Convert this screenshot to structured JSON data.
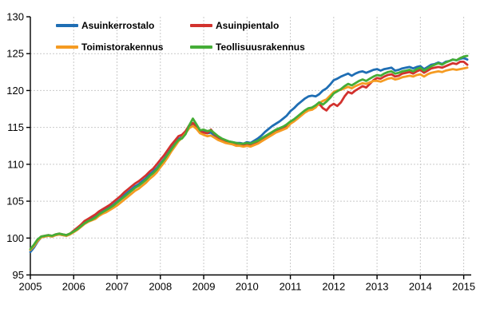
{
  "chart_data": {
    "type": "line",
    "title": "",
    "xlabel": "",
    "ylabel": "",
    "x_start_label": "2005-01",
    "x_end_label": "2015-02",
    "points_per_series": 122,
    "x_ticks": [
      "2005",
      "2006",
      "2007",
      "2008",
      "2009",
      "2010",
      "2011",
      "2012",
      "2013",
      "2014",
      "2015"
    ],
    "y_ticks": [
      "95",
      "100",
      "105",
      "110",
      "115",
      "120",
      "125",
      "130"
    ],
    "ylim": [
      95,
      130
    ],
    "grid": true,
    "gridline_color": "#c9c9c9",
    "axis_color": "#000000",
    "legend_position": "top-left-two-columns",
    "series": [
      {
        "name": "Asuinkerrostalo",
        "color": "#1f6eb4",
        "values": [
          98.1,
          98.7,
          99.5,
          100.1,
          100.2,
          100.3,
          100.2,
          100.4,
          100.5,
          100.4,
          100.3,
          100.5,
          100.9,
          101.2,
          101.6,
          102.1,
          102.4,
          102.6,
          102.9,
          103.3,
          103.6,
          103.9,
          104.2,
          104.5,
          104.9,
          105.3,
          105.8,
          106.2,
          106.6,
          107.0,
          107.3,
          107.7,
          108.1,
          108.6,
          109.0,
          109.5,
          110.1,
          110.7,
          111.4,
          112.1,
          112.8,
          113.4,
          113.7,
          114.3,
          115.1,
          115.4,
          115.0,
          114.4,
          114.4,
          114.2,
          114.3,
          113.9,
          113.6,
          113.4,
          113.2,
          113.1,
          113.0,
          112.9,
          112.9,
          112.8,
          113.0,
          112.9,
          113.2,
          113.5,
          113.9,
          114.4,
          114.8,
          115.2,
          115.5,
          115.8,
          116.2,
          116.6,
          117.2,
          117.6,
          118.1,
          118.5,
          118.9,
          119.2,
          119.3,
          119.2,
          119.5,
          120.0,
          120.3,
          120.8,
          121.4,
          121.6,
          121.9,
          122.1,
          122.3,
          122.0,
          122.3,
          122.5,
          122.6,
          122.4,
          122.6,
          122.8,
          122.9,
          122.7,
          122.9,
          123.0,
          123.1,
          122.7,
          122.8,
          123.0,
          123.1,
          123.2,
          123.0,
          123.2,
          123.3,
          122.9,
          123.2,
          123.5,
          123.6,
          123.8,
          123.6,
          123.9,
          124.0,
          124.2,
          124.1,
          124.3,
          124.4,
          124.2
        ]
      },
      {
        "name": "Asuinpientalo",
        "color": "#d2322e",
        "values": [
          98.4,
          99.0,
          99.7,
          100.2,
          100.3,
          100.4,
          100.3,
          100.5,
          100.6,
          100.5,
          100.4,
          100.6,
          101.0,
          101.4,
          101.8,
          102.3,
          102.6,
          102.9,
          103.2,
          103.6,
          103.9,
          104.2,
          104.5,
          104.9,
          105.3,
          105.7,
          106.2,
          106.6,
          107.0,
          107.4,
          107.7,
          108.1,
          108.5,
          109.0,
          109.4,
          110.0,
          110.6,
          111.2,
          111.9,
          112.6,
          113.2,
          113.8,
          114.0,
          114.5,
          115.3,
          115.6,
          115.1,
          114.5,
          114.3,
          114.2,
          114.7,
          114.1,
          113.6,
          113.3,
          113.1,
          112.9,
          112.8,
          112.6,
          112.6,
          112.5,
          112.7,
          112.5,
          112.7,
          112.9,
          113.2,
          113.5,
          113.8,
          114.1,
          114.4,
          114.6,
          114.8,
          115.1,
          115.6,
          115.9,
          116.3,
          116.7,
          117.1,
          117.4,
          117.5,
          117.8,
          118.2,
          117.6,
          117.3,
          117.9,
          118.2,
          117.9,
          118.4,
          119.2,
          119.8,
          119.6,
          120.0,
          120.3,
          120.6,
          120.4,
          120.9,
          121.4,
          121.7,
          121.6,
          121.9,
          122.1,
          122.2,
          121.9,
          122.0,
          122.3,
          122.4,
          122.5,
          122.3,
          122.6,
          122.8,
          122.4,
          122.7,
          123.0,
          123.1,
          123.2,
          123.1,
          123.3,
          123.5,
          123.7,
          123.6,
          123.9,
          123.9,
          123.5
        ]
      },
      {
        "name": "Toimistorakennus",
        "color": "#f59b22",
        "values": [
          98.4,
          98.9,
          99.6,
          100.1,
          100.2,
          100.3,
          100.2,
          100.4,
          100.5,
          100.4,
          100.3,
          100.5,
          100.8,
          101.1,
          101.5,
          101.9,
          102.2,
          102.4,
          102.6,
          103.0,
          103.3,
          103.5,
          103.8,
          104.1,
          104.4,
          104.8,
          105.2,
          105.6,
          106.0,
          106.4,
          106.7,
          107.1,
          107.5,
          108.0,
          108.4,
          108.9,
          109.6,
          110.2,
          110.9,
          111.7,
          112.4,
          113.1,
          113.6,
          114.2,
          114.9,
          115.2,
          114.8,
          114.2,
          114.0,
          113.8,
          113.9,
          113.6,
          113.3,
          113.1,
          112.9,
          112.8,
          112.7,
          112.5,
          112.5,
          112.4,
          112.5,
          112.4,
          112.6,
          112.8,
          113.1,
          113.4,
          113.7,
          114.0,
          114.3,
          114.5,
          114.7,
          114.9,
          115.5,
          115.8,
          116.2,
          116.6,
          117.0,
          117.3,
          117.4,
          117.7,
          118.3,
          118.6,
          118.8,
          119.3,
          119.8,
          120.0,
          120.1,
          120.3,
          120.5,
          120.3,
          120.6,
          120.8,
          121.0,
          120.9,
          121.1,
          121.3,
          121.3,
          121.2,
          121.4,
          121.6,
          121.7,
          121.5,
          121.6,
          121.8,
          121.9,
          122.0,
          121.9,
          122.1,
          122.2,
          121.9,
          122.2,
          122.4,
          122.5,
          122.6,
          122.5,
          122.7,
          122.8,
          122.9,
          122.8,
          122.9,
          123.0,
          123.1
        ]
      },
      {
        "name": "Teollisuusrakennus",
        "color": "#45ad37",
        "values": [
          98.5,
          99.1,
          99.8,
          100.2,
          100.3,
          100.4,
          100.3,
          100.5,
          100.6,
          100.5,
          100.4,
          100.6,
          100.9,
          101.2,
          101.6,
          102.0,
          102.3,
          102.5,
          102.8,
          103.2,
          103.5,
          103.8,
          104.1,
          104.4,
          104.8,
          105.2,
          105.6,
          106.0,
          106.4,
          106.8,
          107.1,
          107.5,
          107.9,
          108.4,
          108.8,
          109.3,
          110.0,
          110.6,
          111.3,
          112.0,
          112.7,
          113.3,
          113.5,
          114.1,
          115.3,
          116.2,
          115.4,
          114.6,
          114.7,
          114.5,
          114.6,
          114.2,
          113.8,
          113.5,
          113.3,
          113.1,
          113.0,
          112.9,
          112.8,
          112.8,
          112.9,
          112.8,
          113.0,
          113.2,
          113.5,
          113.8,
          114.1,
          114.4,
          114.7,
          114.9,
          115.1,
          115.4,
          115.8,
          116.1,
          116.5,
          116.9,
          117.3,
          117.6,
          117.7,
          118.0,
          118.4,
          118.1,
          118.5,
          119.0,
          119.6,
          119.9,
          120.2,
          120.6,
          120.9,
          120.7,
          121.0,
          121.3,
          121.5,
          121.3,
          121.6,
          121.9,
          122.1,
          122.0,
          122.3,
          122.5,
          122.6,
          122.3,
          122.4,
          122.6,
          122.7,
          122.8,
          122.6,
          122.9,
          123.1,
          122.7,
          123.0,
          123.3,
          123.5,
          123.7,
          123.5,
          123.8,
          124.0,
          124.2,
          124.1,
          124.4,
          124.6,
          124.7
        ]
      }
    ],
    "legend": {
      "rows": [
        [
          "Asuinkerrostalo",
          "Asuinpientalo"
        ],
        [
          "Toimistorakennus",
          "Teollisuusrakennus"
        ]
      ]
    }
  }
}
